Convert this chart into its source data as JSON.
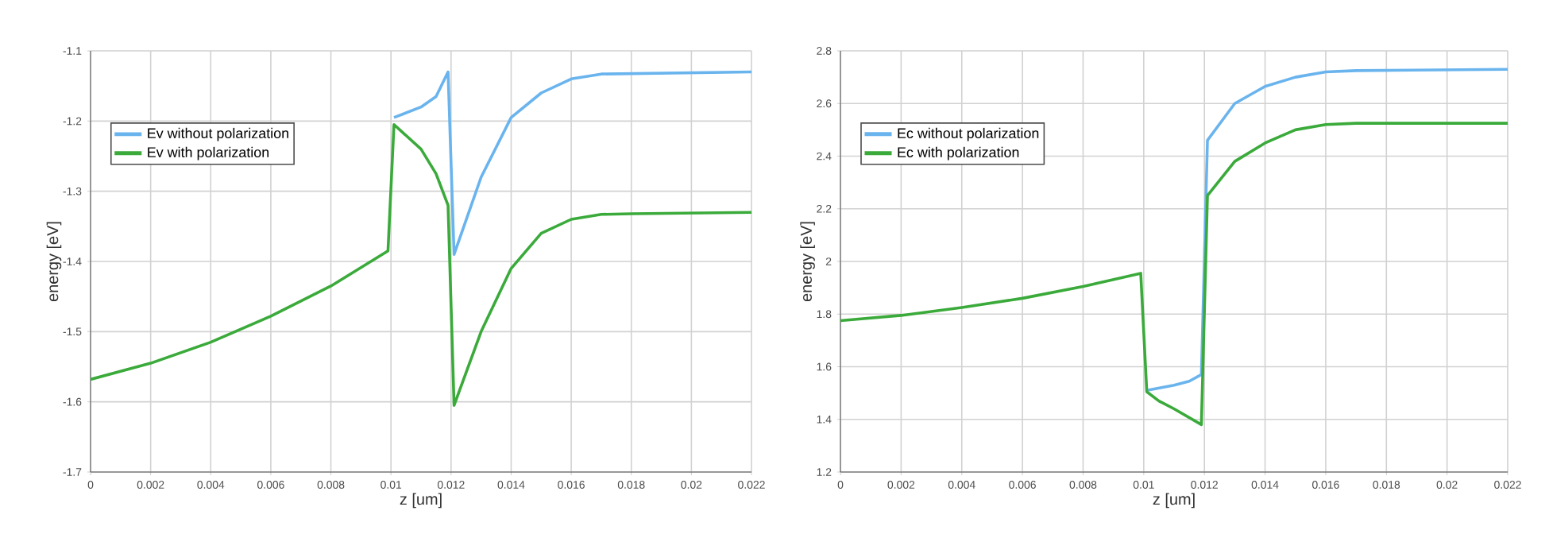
{
  "chart_data": [
    {
      "type": "line",
      "xlabel": "z [um]",
      "ylabel": "energy [eV]",
      "xlim": [
        0,
        0.022
      ],
      "ylim": [
        -1.7,
        -1.1
      ],
      "xticks": [
        0,
        0.002,
        0.004,
        0.006,
        0.008,
        0.01,
        0.012,
        0.014,
        0.016,
        0.018,
        0.02,
        0.022
      ],
      "yticks": [
        -1.7,
        -1.6,
        -1.5,
        -1.4,
        -1.3,
        -1.2,
        -1.1
      ],
      "grid": true,
      "legend": "top left",
      "series": [
        {
          "name": "Ev without polarization",
          "color": "#6ab4ee",
          "x": [
            0.0101,
            0.011,
            0.0115,
            0.0119,
            0.0121,
            0.013,
            0.014,
            0.015,
            0.016,
            0.017,
            0.022
          ],
          "values": [
            -1.195,
            -1.18,
            -1.165,
            -1.13,
            -1.39,
            -1.28,
            -1.195,
            -1.16,
            -1.14,
            -1.133,
            -1.13
          ]
        },
        {
          "name": "Ev with polarization",
          "color": "#3aaa3a",
          "x": [
            0,
            0.002,
            0.004,
            0.006,
            0.008,
            0.0099,
            0.0101,
            0.011,
            0.0115,
            0.0119,
            0.0121,
            0.013,
            0.014,
            0.015,
            0.016,
            0.017,
            0.018,
            0.022
          ],
          "values": [
            -1.568,
            -1.545,
            -1.515,
            -1.478,
            -1.435,
            -1.385,
            -1.205,
            -1.24,
            -1.275,
            -1.32,
            -1.605,
            -1.5,
            -1.41,
            -1.36,
            -1.34,
            -1.333,
            -1.332,
            -1.33
          ]
        }
      ]
    },
    {
      "type": "line",
      "xlabel": "z [um]",
      "ylabel": "energy [eV]",
      "xlim": [
        0,
        0.022
      ],
      "ylim": [
        1.2,
        2.8
      ],
      "xticks": [
        0,
        0.002,
        0.004,
        0.006,
        0.008,
        0.01,
        0.012,
        0.014,
        0.016,
        0.018,
        0.02,
        0.022
      ],
      "yticks": [
        1.2,
        1.4,
        1.6,
        1.8,
        2,
        2.2,
        2.4,
        2.6,
        2.8
      ],
      "grid": true,
      "legend": "top left",
      "series": [
        {
          "name": "Ec without polarization",
          "color": "#6ab4ee",
          "x": [
            0.0101,
            0.011,
            0.0115,
            0.0119,
            0.0121,
            0.013,
            0.014,
            0.015,
            0.016,
            0.017,
            0.022
          ],
          "values": [
            1.51,
            1.53,
            1.545,
            1.57,
            2.46,
            2.6,
            2.665,
            2.7,
            2.72,
            2.725,
            2.73
          ]
        },
        {
          "name": "Ec with polarization",
          "color": "#3aaa3a",
          "x": [
            0,
            0.002,
            0.004,
            0.006,
            0.008,
            0.0099,
            0.0101,
            0.0105,
            0.011,
            0.0119,
            0.0121,
            0.013,
            0.014,
            0.015,
            0.016,
            0.017,
            0.022
          ],
          "values": [
            1.775,
            1.795,
            1.825,
            1.86,
            1.905,
            1.955,
            1.505,
            1.47,
            1.44,
            1.38,
            2.25,
            2.38,
            2.45,
            2.5,
            2.52,
            2.525,
            2.525
          ]
        }
      ]
    }
  ]
}
